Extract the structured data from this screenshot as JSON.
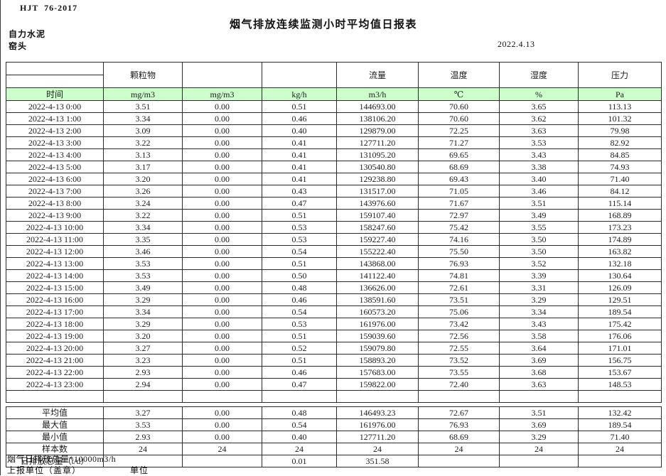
{
  "page": {
    "doc_code": "HJT  76-2017",
    "title": "烟气排放连续监测小时平均值日报表",
    "company": "自力水泥",
    "location": "窑头",
    "date": "2022.4.13"
  },
  "colors": {
    "header_green": "#ccffcc",
    "border": "#2b2b2b"
  },
  "table": {
    "group_headers": [
      "",
      "颗粒物",
      "",
      "",
      "流量",
      "温度",
      "湿度",
      "压力"
    ],
    "unit_row": [
      "时间",
      "mg/m3",
      "mg/m3",
      "kg/h",
      "m3/h",
      "℃",
      "%",
      "Pa"
    ],
    "rows": [
      [
        "2022-4-13 0:00",
        "3.51",
        "0.00",
        "0.51",
        "144693.00",
        "70.60",
        "3.65",
        "113.13"
      ],
      [
        "2022-4-13 1:00",
        "3.34",
        "0.00",
        "0.46",
        "138106.20",
        "70.60",
        "3.62",
        "101.32"
      ],
      [
        "2022-4-13 2:00",
        "3.09",
        "0.00",
        "0.40",
        "129879.00",
        "72.25",
        "3.63",
        "79.98"
      ],
      [
        "2022-4-13 3:00",
        "3.22",
        "0.00",
        "0.41",
        "127711.20",
        "71.27",
        "3.53",
        "82.92"
      ],
      [
        "2022-4-13 4:00",
        "3.13",
        "0.00",
        "0.41",
        "131095.20",
        "69.65",
        "3.43",
        "84.85"
      ],
      [
        "2022-4-13 5:00",
        "3.17",
        "0.00",
        "0.41",
        "130540.80",
        "68.69",
        "3.38",
        "74.93"
      ],
      [
        "2022-4-13 6:00",
        "3.20",
        "0.00",
        "0.41",
        "129238.80",
        "69.43",
        "3.40",
        "71.40"
      ],
      [
        "2022-4-13 7:00",
        "3.26",
        "0.00",
        "0.43",
        "131517.00",
        "71.05",
        "3.46",
        "84.12"
      ],
      [
        "2022-4-13 8:00",
        "3.24",
        "0.00",
        "0.47",
        "143976.60",
        "71.67",
        "3.51",
        "115.14"
      ],
      [
        "2022-4-13 9:00",
        "3.22",
        "0.00",
        "0.51",
        "159107.40",
        "72.97",
        "3.49",
        "168.89"
      ],
      [
        "2022-4-13 10:00",
        "3.34",
        "0.00",
        "0.53",
        "158247.60",
        "75.42",
        "3.55",
        "173.23"
      ],
      [
        "2022-4-13 11:00",
        "3.35",
        "0.00",
        "0.53",
        "159227.40",
        "74.16",
        "3.50",
        "174.89"
      ],
      [
        "2022-4-13 12:00",
        "3.46",
        "0.00",
        "0.54",
        "155222.40",
        "75.50",
        "3.50",
        "163.82"
      ],
      [
        "2022-4-13 13:00",
        "3.53",
        "0.00",
        "0.51",
        "143868.00",
        "76.93",
        "3.52",
        "132.18"
      ],
      [
        "2022-4-13 14:00",
        "3.53",
        "0.00",
        "0.50",
        "141122.40",
        "74.81",
        "3.39",
        "130.64"
      ],
      [
        "2022-4-13 15:00",
        "3.49",
        "0.00",
        "0.48",
        "136626.00",
        "72.61",
        "3.31",
        "126.09"
      ],
      [
        "2022-4-13 16:00",
        "3.29",
        "0.00",
        "0.46",
        "138591.60",
        "73.51",
        "3.29",
        "129.51"
      ],
      [
        "2022-4-13 17:00",
        "3.34",
        "0.00",
        "0.54",
        "160573.20",
        "75.06",
        "3.34",
        "189.54"
      ],
      [
        "2022-4-13 18:00",
        "3.29",
        "0.00",
        "0.53",
        "161976.00",
        "73.42",
        "3.43",
        "175.42"
      ],
      [
        "2022-4-13 19:00",
        "3.20",
        "0.00",
        "0.51",
        "159039.60",
        "72.56",
        "3.58",
        "176.06"
      ],
      [
        "2022-4-13 20:00",
        "3.27",
        "0.00",
        "0.52",
        "159079.80",
        "72.55",
        "3.64",
        "171.01"
      ],
      [
        "2022-4-13 21:00",
        "3.23",
        "0.00",
        "0.51",
        "158893.20",
        "73.52",
        "3.69",
        "156.75"
      ],
      [
        "2022-4-13 22:00",
        "2.93",
        "0.00",
        "0.46",
        "157683.00",
        "73.55",
        "3.68",
        "153.67"
      ],
      [
        "2022-4-13 23:00",
        "2.94",
        "0.00",
        "0.47",
        "159822.00",
        "72.40",
        "3.63",
        "148.53"
      ]
    ],
    "summary_rows": [
      [
        "平均值",
        "3.27",
        "0.00",
        "0.48",
        "146493.23",
        "72.67",
        "3.51",
        "132.42"
      ],
      [
        "最大值",
        "3.53",
        "0.00",
        "0.54",
        "161976.00",
        "76.93",
        "3.69",
        "189.54"
      ],
      [
        "最小值",
        "2.93",
        "0.00",
        "0.40",
        "127711.20",
        "68.69",
        "3.29",
        "71.40"
      ],
      [
        "样本数",
        "24",
        "24",
        "24",
        "24",
        "24",
        "24",
        "24"
      ],
      [
        "日排放总量（t/d）",
        "",
        "",
        "0.01",
        "351.58",
        "",
        "",
        ""
      ]
    ]
  },
  "footer": {
    "note": "烟气日排放总量*10000m3/h",
    "report_unit_label": "上报单位（盖章）",
    "unit_label": "单位"
  }
}
